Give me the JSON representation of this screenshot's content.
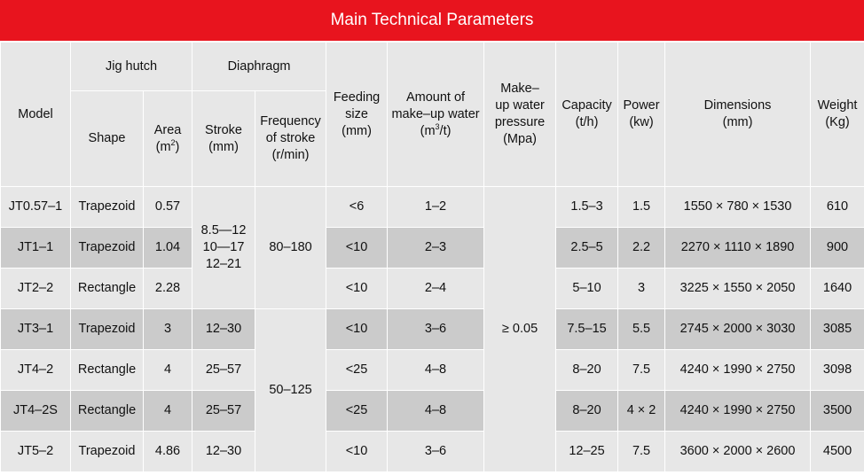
{
  "title": "Main Technical Parameters",
  "header": {
    "model": "Model",
    "jig_hutch": "Jig hutch",
    "diaphragm": "Diaphragm",
    "shape": "Shape",
    "area": "Area",
    "area_unit_pre": "(m",
    "area_unit_sup": "2",
    "area_unit_post": ")",
    "stroke": "Stroke",
    "stroke_unit": "(mm)",
    "frequency_l1": "Frequency",
    "frequency_l2": "of stroke",
    "frequency_l3": "(r/min)",
    "feeding_l1": "Feeding",
    "feeding_l2": "size",
    "feeding_l3": "(mm)",
    "water_l1": "Amount of",
    "water_l2": "make–up water",
    "water_unit_pre": "(m",
    "water_unit_sup": "3",
    "water_unit_post": "/t)",
    "pressure_l1": "Make–",
    "pressure_l2": "up water",
    "pressure_l3": "pressure",
    "pressure_l4": "(Mpa)",
    "capacity_l1": "Capacity",
    "capacity_l2": "(t/h)",
    "power_l1": "Power",
    "power_l2": "(kw)",
    "dimensions_l1": "Dimensions",
    "dimensions_l2": "(mm)",
    "weight_l1": "Weight",
    "weight_l2": "(Kg)"
  },
  "merged": {
    "stroke_group1_l1": "8.5—12",
    "stroke_group1_l2": "10—17",
    "stroke_group1_l3": "12–21",
    "frequency_group1": "80–180",
    "frequency_group2": "50–125",
    "pressure_all": "≥ 0.05"
  },
  "rows": [
    {
      "model": "JT0.57–1",
      "shape": "Trapezoid",
      "area": "0.57",
      "feeding": "<6",
      "water": "1–2",
      "capacity": "1.5–3",
      "power": "1.5",
      "dimensions": "1550 × 780 × 1530",
      "weight": "610"
    },
    {
      "model": "JT1–1",
      "shape": "Trapezoid",
      "area": "1.04",
      "feeding": "<10",
      "water": "2–3",
      "capacity": "2.5–5",
      "power": "2.2",
      "dimensions": "2270 × 1110 × 1890",
      "weight": "900"
    },
    {
      "model": "JT2–2",
      "shape": "Rectangle",
      "area": "2.28",
      "feeding": "<10",
      "water": "2–4",
      "capacity": "5–10",
      "power": "3",
      "dimensions": "3225 × 1550 × 2050",
      "weight": "1640"
    },
    {
      "model": "JT3–1",
      "shape": "Trapezoid",
      "area": "3",
      "stroke": "12–30",
      "feeding": "<10",
      "water": "3–6",
      "capacity": "7.5–15",
      "power": "5.5",
      "dimensions": "2745 × 2000 × 3030",
      "weight": "3085"
    },
    {
      "model": "JT4–2",
      "shape": "Rectangle",
      "area": "4",
      "stroke": "25–57",
      "feeding": "<25",
      "water": "4–8",
      "capacity": "8–20",
      "power": "7.5",
      "dimensions": "4240 × 1990 × 2750",
      "weight": "3098"
    },
    {
      "model": "JT4–2S",
      "shape": "Rectangle",
      "area": "4",
      "stroke": "25–57",
      "feeding": "<25",
      "water": "4–8",
      "capacity": "8–20",
      "power": "4 × 2",
      "dimensions": "4240 × 1990 × 2750",
      "weight": "3500"
    },
    {
      "model": "JT5–2",
      "shape": "Trapezoid",
      "area": "4.86",
      "stroke": "12–30",
      "feeding": "<10",
      "water": "3–6",
      "capacity": "12–25",
      "power": "7.5",
      "dimensions": "3600 × 2000 × 2600",
      "weight": "4500"
    }
  ]
}
